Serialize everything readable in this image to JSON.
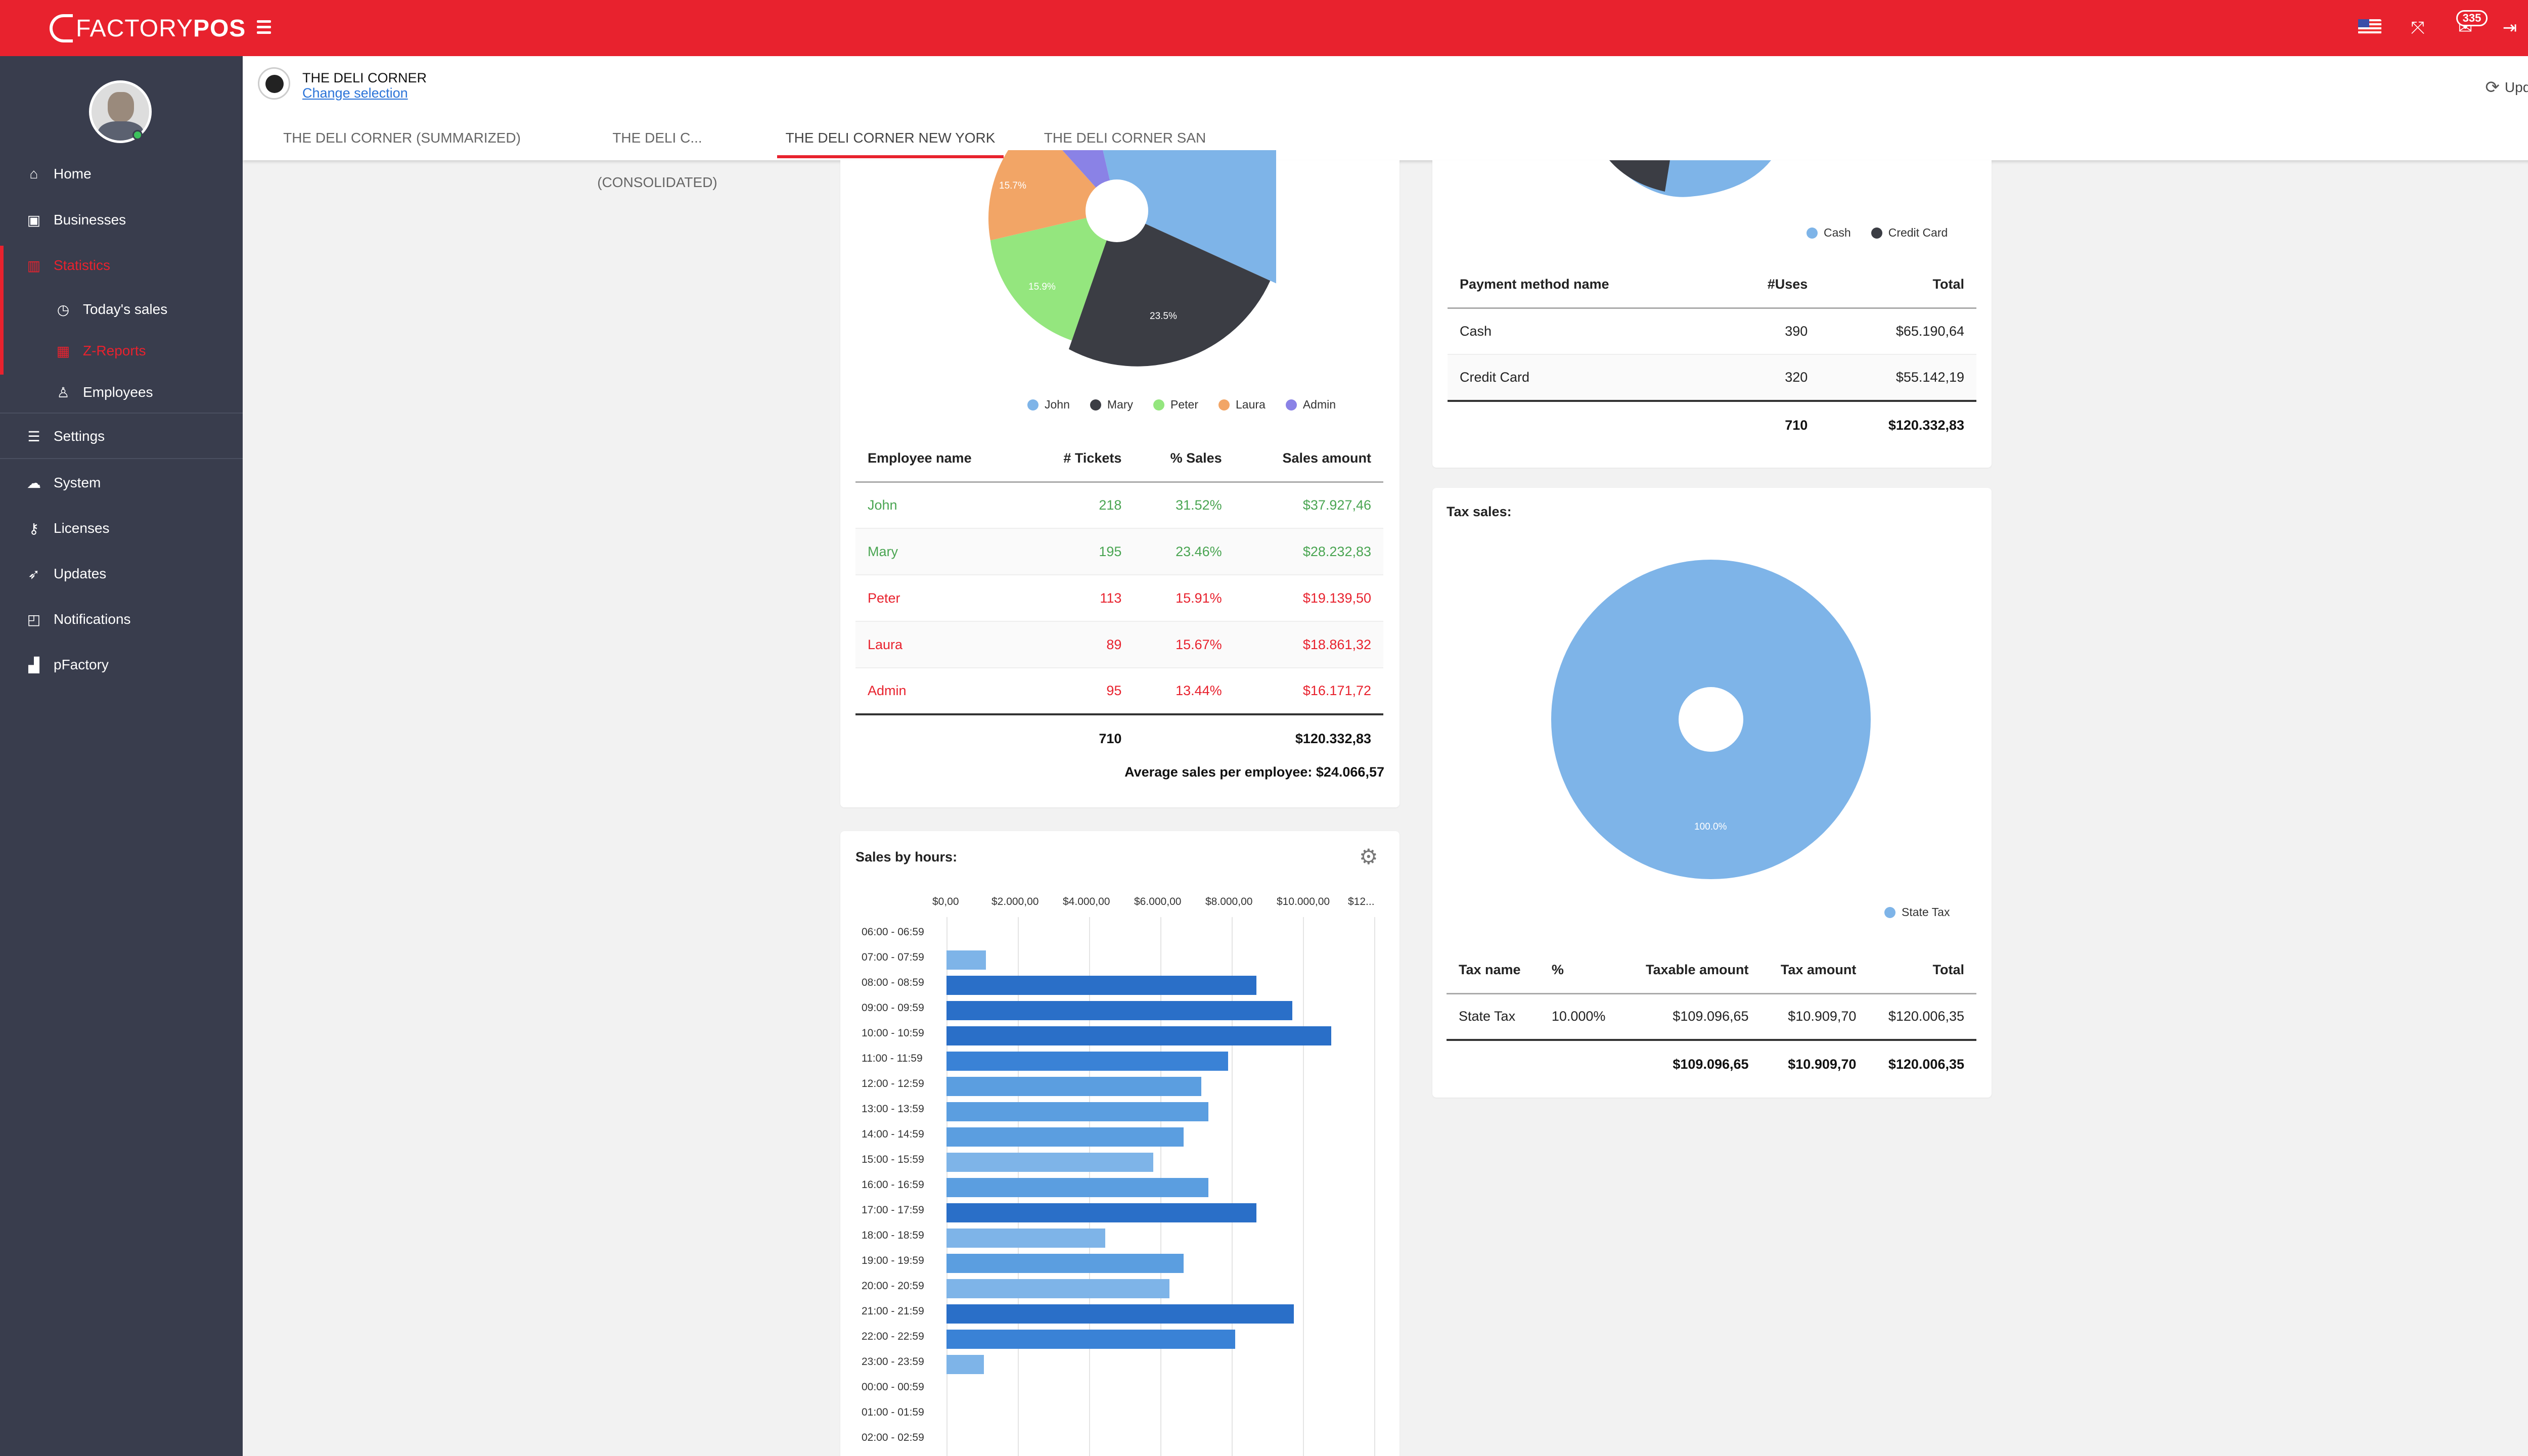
{
  "brand": {
    "name_part1": "FACTORY",
    "name_part2": "POS"
  },
  "top": {
    "notifications_count": "335",
    "icons": [
      "hamburger-menu-icon",
      "us-flag-icon",
      "expand-icon",
      "mail-icon",
      "logout-icon",
      "user-avatar-icon"
    ]
  },
  "sidebar": {
    "items": [
      {
        "label": "Home",
        "icon": "home-icon"
      },
      {
        "label": "Businesses",
        "icon": "briefcase-icon"
      },
      {
        "label": "Statistics",
        "icon": "chart-icon"
      },
      {
        "label": "Today's sales",
        "icon": "clock-icon"
      },
      {
        "label": "Z-Reports",
        "icon": "calendar-icon"
      },
      {
        "label": "Employees",
        "icon": "user-icon"
      },
      {
        "label": "Settings",
        "icon": "list-icon"
      },
      {
        "label": "System",
        "icon": "cloud-icon"
      },
      {
        "label": "Licenses",
        "icon": "key-icon"
      },
      {
        "label": "Updates",
        "icon": "rocket-icon"
      },
      {
        "label": "Notifications",
        "icon": "bell-icon"
      },
      {
        "label": "pFactory",
        "icon": "bar-chart-icon"
      }
    ]
  },
  "header": {
    "business_name": "THE DELI CORNER",
    "change_selection": "Change selection",
    "update_all": "Update all",
    "tabs": [
      {
        "label": "THE DELI CORNER (SUMMARIZED)"
      },
      {
        "label": "THE DELI C... (CONSOLIDATED)"
      },
      {
        "label": "THE DELI CORNER NEW YORK"
      },
      {
        "label": "THE DELI CORNER SAN FRANC..."
      }
    ]
  },
  "employees": {
    "legend": [
      {
        "name": "John",
        "color": "#7eb4e8"
      },
      {
        "name": "Mary",
        "color": "#3b3d44"
      },
      {
        "name": "Peter",
        "color": "#94e67e"
      },
      {
        "name": "Laura",
        "color": "#f2a566"
      },
      {
        "name": "Admin",
        "color": "#8a82e6"
      }
    ],
    "columns": [
      "Employee name",
      "# Tickets",
      "% Sales",
      "Sales amount"
    ],
    "rows": [
      {
        "name": "John",
        "tickets": "218",
        "pct": "31.52%",
        "amount": "$37.927,46"
      },
      {
        "name": "Mary",
        "tickets": "195",
        "pct": "23.46%",
        "amount": "$28.232,83"
      },
      {
        "name": "Peter",
        "tickets": "113",
        "pct": "15.91%",
        "amount": "$19.139,50"
      },
      {
        "name": "Laura",
        "tickets": "89",
        "pct": "15.67%",
        "amount": "$18.861,32"
      },
      {
        "name": "Admin",
        "tickets": "95",
        "pct": "13.44%",
        "amount": "$16.171,72"
      }
    ],
    "total_tickets": "710",
    "total_amount": "$120.332,83",
    "average": "Average sales per employee: $24.066,57",
    "pie_labels": {
      "mary": "23.5%",
      "peter": "15.9%",
      "laura": "15.7%"
    }
  },
  "payment": {
    "legend": [
      {
        "name": "Cash",
        "color": "#7eb4e8"
      },
      {
        "name": "Credit Card",
        "color": "#3b3d44"
      }
    ],
    "columns": [
      "Payment method name",
      "#Uses",
      "Total"
    ],
    "rows": [
      {
        "name": "Cash",
        "uses": "390",
        "total": "$65.190,64"
      },
      {
        "name": "Credit Card",
        "uses": "320",
        "total": "$55.142,19"
      }
    ],
    "total_uses": "710",
    "total": "$120.332,83"
  },
  "tax": {
    "title": "Tax sales:",
    "legend": [
      {
        "name": "State Tax",
        "color": "#7eb4e8"
      }
    ],
    "pie_label": "100.0%",
    "columns": [
      "Tax name",
      "%",
      "Taxable amount",
      "Tax amount",
      "Total"
    ],
    "rows": [
      {
        "name": "State Tax",
        "pct": "10.000%",
        "taxable": "$109.096,65",
        "tax": "$10.909,70",
        "total": "$120.006,35"
      }
    ],
    "totals": {
      "taxable": "$109.096,65",
      "tax": "$10.909,70",
      "total": "$120.006,35"
    }
  },
  "hours": {
    "title": "Sales by hours:",
    "chart_data": {
      "type": "bar",
      "orientation": "horizontal",
      "categories": [
        "06:00 - 06:59",
        "07:00 - 07:59",
        "08:00 - 08:59",
        "09:00 - 09:59",
        "10:00 - 10:59",
        "11:00 - 11:59",
        "12:00 - 12:59",
        "13:00 - 13:59",
        "14:00 - 14:59",
        "15:00 - 15:59",
        "16:00 - 16:59",
        "17:00 - 17:59",
        "18:00 - 18:59",
        "19:00 - 19:59",
        "20:00 - 20:59",
        "21:00 - 21:59",
        "22:00 - 22:59",
        "23:00 - 23:59",
        "00:00 - 00:59",
        "01:00 - 01:59",
        "02:00 - 02:59"
      ],
      "values": [
        0,
        1100,
        8700,
        9700,
        10800,
        7900,
        7150,
        7350,
        6650,
        5800,
        7350,
        8700,
        4450,
        6650,
        6250,
        9750,
        8100,
        1050,
        0,
        0,
        0
      ],
      "x_ticks": [
        "$0,00",
        "$2.000,00",
        "$4.000,00",
        "$6.000,00",
        "$8.000,00",
        "$10.000,00",
        "$12..."
      ],
      "xlim": [
        0,
        12000
      ]
    }
  }
}
